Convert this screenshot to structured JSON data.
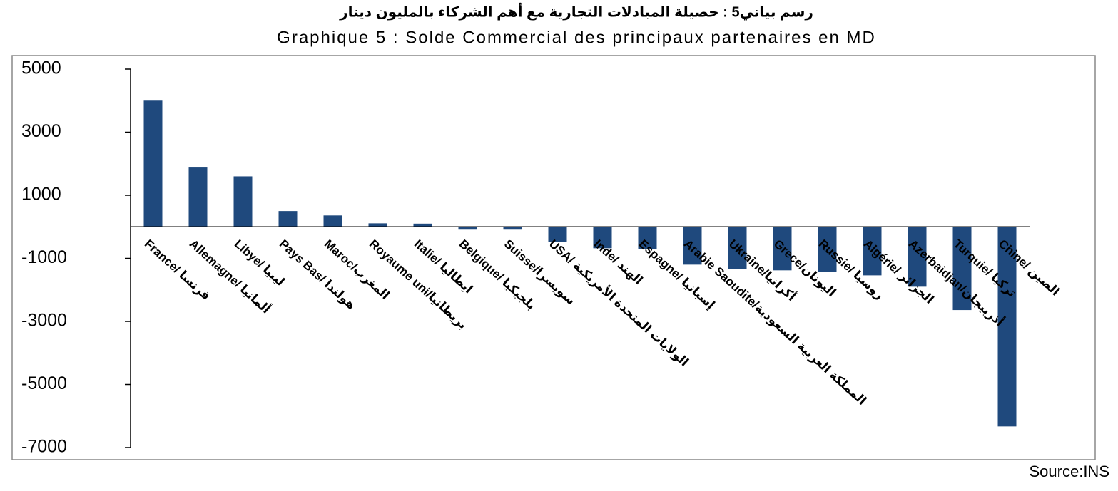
{
  "chart_data": {
    "type": "bar",
    "title": "رسم بياني5 : حصيلة المبادلات التجارية مع أهم الشركاء بالمليون دينار",
    "subtitle": "Graphique 5 : Solde Commercial des principaux partenaires en MD",
    "source": "Source:INS",
    "categories": [
      "France/ فرنسا",
      "Allemagne/ ألمانيا",
      "Libye/ ليبيا",
      "Pays Bas/ هولندا",
      "Maroc/المغرب",
      "Royaume uni/بريطانيا",
      "Italie/ ايطاليا",
      "Belgique/ بلجيكيا",
      "Suisse/سويسرا",
      "USA/ الولايات المتحدة الأمريكية",
      "Inde/ الهند",
      "Espagne/ إسبانيا",
      "Arabie Saoudite/المملكة العربية السعودية",
      "Ukraine/أكرانيا",
      "Grece/اليونان",
      "Russie/ روسيا",
      "Algérie/ الجزائر",
      "Azerbaidjan/أذربيجان",
      "Turquie/ تركيا",
      "Chine/ الصين"
    ],
    "values": [
      4000,
      1880,
      1600,
      500,
      360,
      110,
      100,
      -90,
      -90,
      -470,
      -680,
      -700,
      -1200,
      -1330,
      -1380,
      -1420,
      -1540,
      -1900,
      -2640,
      -6330
    ],
    "color": "#1f497d",
    "ylim": [
      -7000,
      5000
    ],
    "yticks": [
      5000,
      3000,
      1000,
      -1000,
      -3000,
      -5000,
      -7000
    ],
    "grid": false
  }
}
